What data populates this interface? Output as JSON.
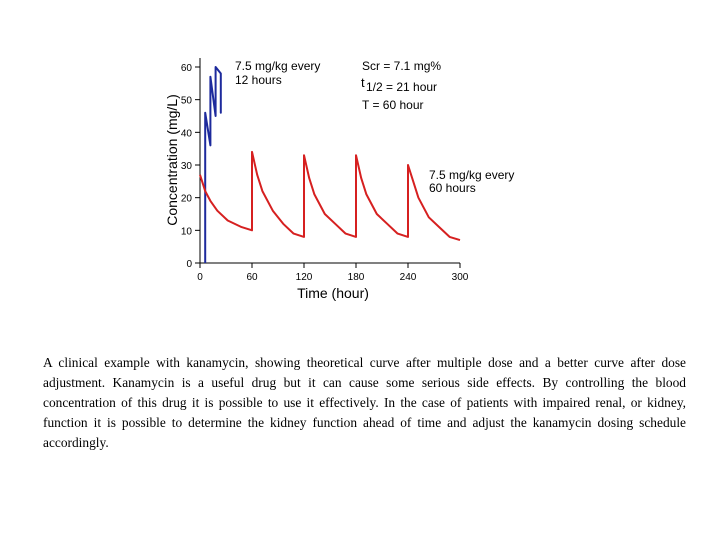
{
  "colors": {
    "high_dose": "#1d2a9c",
    "adjusted_dose": "#d62020",
    "axis": "#000000"
  },
  "chart_data": {
    "type": "line",
    "xlabel": "Time (hour)",
    "ylabel": "Concentration (mg/L)",
    "xlim": [
      0,
      300
    ],
    "ylim": [
      0,
      60
    ],
    "x_ticks": [
      "0",
      "60",
      "120",
      "180",
      "240",
      "300"
    ],
    "y_ticks": [
      "0",
      "10",
      "20",
      "30",
      "40",
      "50",
      "60"
    ],
    "grid": false,
    "series": [
      {
        "color": "#1d2a9c",
        "points": [
          [
            6,
            0
          ],
          [
            6,
            46
          ],
          [
            12,
            36
          ],
          [
            12,
            57
          ],
          [
            18,
            45
          ],
          [
            18,
            60
          ],
          [
            24,
            58
          ],
          [
            24,
            46
          ],
          [
            24,
            57
          ]
        ]
      },
      {
        "color": "#d62020",
        "points": [
          [
            0,
            27
          ],
          [
            6,
            22
          ],
          [
            12,
            19
          ],
          [
            20,
            16
          ],
          [
            32,
            13
          ],
          [
            48,
            11
          ],
          [
            60,
            10
          ],
          [
            60,
            34
          ],
          [
            66,
            27
          ],
          [
            72,
            22
          ],
          [
            84,
            16
          ],
          [
            96,
            12
          ],
          [
            108,
            9
          ],
          [
            120,
            8
          ],
          [
            120,
            33
          ],
          [
            126,
            26
          ],
          [
            132,
            21
          ],
          [
            144,
            15
          ],
          [
            156,
            12
          ],
          [
            168,
            9
          ],
          [
            180,
            8
          ],
          [
            180,
            33
          ],
          [
            186,
            26
          ],
          [
            192,
            21
          ],
          [
            204,
            15
          ],
          [
            216,
            12
          ],
          [
            228,
            9
          ],
          [
            240,
            8
          ],
          [
            240,
            30
          ],
          [
            246,
            25
          ],
          [
            252,
            20
          ],
          [
            264,
            14
          ],
          [
            276,
            11
          ],
          [
            288,
            8
          ],
          [
            300,
            7
          ]
        ]
      }
    ],
    "annotations": [
      {
        "id": "blue_dose",
        "lines": [
          "7.5 mg/kg every",
          "12 hours"
        ]
      },
      {
        "id": "renal",
        "lines": [
          "Scr = 7.1 mg%",
          "t",
          "1/2 = 21 hour",
          "T = 60 hour"
        ]
      },
      {
        "id": "red_dose",
        "lines": [
          "7.5 mg/kg every",
          "60 hours"
        ]
      }
    ]
  },
  "caption": "A clinical example with kanamycin, showing theoretical curve after multiple dose and a better curve after dose adjustment. Kanamycin is a useful drug but it can cause some serious side effects. By controlling the blood concentration of this drug it is possible to use it effectively. In the case of patients with impaired renal, or kidney, function it is possible to determine the kidney function ahead of time and adjust the kanamycin dosing schedule accordingly."
}
